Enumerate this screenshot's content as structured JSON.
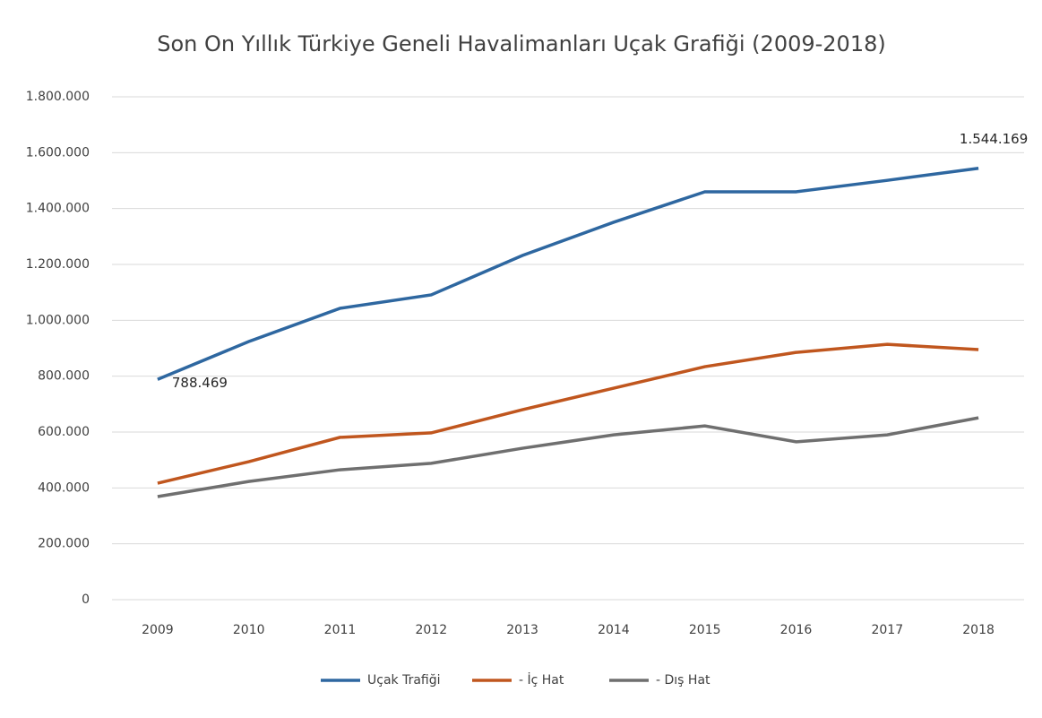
{
  "chart_data": {
    "type": "line",
    "title": "Son On Yıllık Türkiye Geneli Havalimanları Uçak Grafiği (2009-2018)",
    "categories": [
      "2009",
      "2010",
      "2011",
      "2012",
      "2013",
      "2014",
      "2015",
      "2016",
      "2017",
      "2018"
    ],
    "series": [
      {
        "name": "Uçak Trafiği",
        "color": "#2e67a0",
        "values": [
          788469,
          924000,
          1043000,
          1091000,
          1232000,
          1351000,
          1460000,
          1460000,
          1501000,
          1544169
        ],
        "value_labels": [
          "788.469",
          null,
          null,
          null,
          null,
          null,
          null,
          null,
          null,
          "1.544.169"
        ]
      },
      {
        "name": "- İç Hat",
        "color": "#c0561e",
        "values": [
          417000,
          494000,
          581000,
          597000,
          680000,
          757000,
          834000,
          885000,
          914000,
          895000
        ]
      },
      {
        "name": "- Dış Hat",
        "color": "#6f6f6f",
        "values": [
          369000,
          423000,
          465000,
          488000,
          542000,
          590000,
          622000,
          565000,
          590000,
          651000
        ]
      }
    ],
    "ylim": [
      0,
      1800000
    ],
    "yticks": [
      0,
      {
        "value": 200000,
        "label": "200.000"
      },
      {
        "value": 400000,
        "label": "400.000"
      },
      {
        "value": 600000,
        "label": "600.000"
      },
      {
        "value": 800000,
        "label": "800.000"
      },
      {
        "value": 1000000,
        "label": "1.000.000"
      },
      {
        "value": 1200000,
        "label": "1.200.000"
      },
      {
        "value": 1400000,
        "label": "1.400.000"
      },
      {
        "value": 1600000,
        "label": "1.600.000"
      },
      {
        "value": 1800000,
        "label": "1.800.000"
      }
    ],
    "grid": true,
    "legend": "bottom"
  }
}
